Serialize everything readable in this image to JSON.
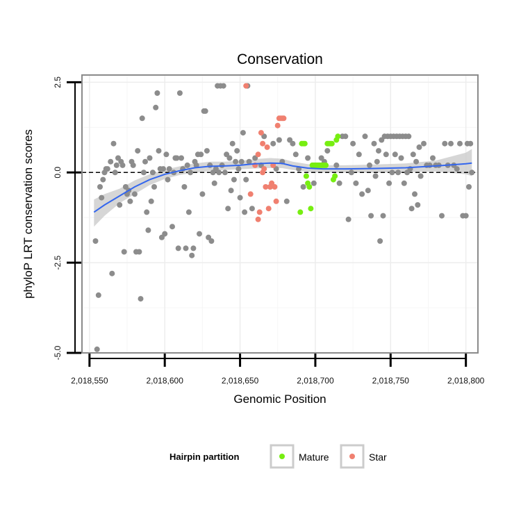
{
  "chart_data": {
    "type": "scatter",
    "title": "Conservation",
    "xlabel": "Genomic Position",
    "ylabel": "phyloP LRT conservation scores",
    "xlim": [
      2018545,
      2018808
    ],
    "ylim": [
      -5.0,
      2.7
    ],
    "x_ticks": [
      2018550,
      2018600,
      2018650,
      2018700,
      2018750,
      2018800
    ],
    "x_tick_labels": [
      "2,018,550",
      "2,018,600",
      "2,018,650",
      "2,018,700",
      "2,018,750",
      "2,018,800"
    ],
    "y_ticks": [
      -5.0,
      -2.5,
      0.0,
      2.5
    ],
    "y_tick_labels": [
      "-5.0",
      "-2.5",
      "0.0",
      "2.5"
    ],
    "grid": true,
    "reference_line": {
      "y": 0.0,
      "style": "dashed"
    },
    "legend": {
      "title": "Hairpin partition",
      "position": "bottom",
      "entries": [
        {
          "label": "Mature",
          "color": "#77ee11"
        },
        {
          "label": "Star",
          "color": "#f08070"
        }
      ]
    },
    "colors": {
      "other": "#8c8c8c",
      "Mature": "#77ee11",
      "Star": "#f08070",
      "smooth": "#3366ee",
      "ribbon": "#c8c8c8"
    },
    "series": [
      {
        "group": "other",
        "points": [
          [
            2018554,
            -1.9
          ],
          [
            2018555,
            -4.9
          ],
          [
            2018556,
            -3.4
          ],
          [
            2018557,
            -0.4
          ],
          [
            2018558,
            -0.7
          ],
          [
            2018559,
            -0.2
          ],
          [
            2018560,
            0.0
          ],
          [
            2018561,
            0.1
          ],
          [
            2018562,
            0.1
          ],
          [
            2018564,
            0.3
          ],
          [
            2018565,
            -2.8
          ],
          [
            2018566,
            0.8
          ],
          [
            2018567,
            0.0
          ],
          [
            2018568,
            0.2
          ],
          [
            2018569,
            0.4
          ],
          [
            2018570,
            -0.9
          ],
          [
            2018571,
            0.3
          ],
          [
            2018572,
            0.2
          ],
          [
            2018573,
            -2.2
          ],
          [
            2018574,
            -0.4
          ],
          [
            2018575,
            -0.6
          ],
          [
            2018576,
            -0.5
          ],
          [
            2018577,
            -0.8
          ],
          [
            2018578,
            0.3
          ],
          [
            2018579,
            0.2
          ],
          [
            2018580,
            -0.6
          ],
          [
            2018581,
            -2.2
          ],
          [
            2018582,
            0.6
          ],
          [
            2018583,
            -2.2
          ],
          [
            2018584,
            -3.5
          ],
          [
            2018585,
            1.5
          ],
          [
            2018586,
            0.0
          ],
          [
            2018587,
            0.3
          ],
          [
            2018588,
            -1.1
          ],
          [
            2018589,
            -1.6
          ],
          [
            2018590,
            0.4
          ],
          [
            2018591,
            -0.8
          ],
          [
            2018592,
            0.0
          ],
          [
            2018593,
            -0.4
          ],
          [
            2018594,
            1.8
          ],
          [
            2018595,
            2.2
          ],
          [
            2018596,
            0.6
          ],
          [
            2018597,
            0.1
          ],
          [
            2018598,
            -1.8
          ],
          [
            2018599,
            0.1
          ],
          [
            2018600,
            -1.7
          ],
          [
            2018601,
            0.5
          ],
          [
            2018602,
            -0.2
          ],
          [
            2018603,
            0.1
          ],
          [
            2018605,
            -1.5
          ],
          [
            2018606,
            0.0
          ],
          [
            2018607,
            0.4
          ],
          [
            2018608,
            0.4
          ],
          [
            2018609,
            -2.1
          ],
          [
            2018610,
            2.2
          ],
          [
            2018611,
            0.4
          ],
          [
            2018612,
            0.1
          ],
          [
            2018613,
            -0.4
          ],
          [
            2018614,
            -2.1
          ],
          [
            2018615,
            0.2
          ],
          [
            2018616,
            -1.1
          ],
          [
            2018617,
            0.0
          ],
          [
            2018618,
            -2.3
          ],
          [
            2018619,
            -2.1
          ],
          [
            2018620,
            0.3
          ],
          [
            2018621,
            0.2
          ],
          [
            2018622,
            0.5
          ],
          [
            2018623,
            -1.7
          ],
          [
            2018624,
            0.5
          ],
          [
            2018625,
            -0.6
          ],
          [
            2018626,
            1.7
          ],
          [
            2018627,
            1.7
          ],
          [
            2018628,
            0.6
          ],
          [
            2018629,
            -1.8
          ],
          [
            2018630,
            0.2
          ],
          [
            2018631,
            -1.9
          ],
          [
            2018632,
            0.0
          ],
          [
            2018633,
            -0.3
          ],
          [
            2018634,
            0.1
          ],
          [
            2018635,
            2.4
          ],
          [
            2018636,
            0.0
          ],
          [
            2018637,
            2.4
          ],
          [
            2018638,
            0.2
          ],
          [
            2018639,
            2.4
          ],
          [
            2018640,
            0.0
          ],
          [
            2018641,
            0.5
          ],
          [
            2018642,
            -1.0
          ],
          [
            2018643,
            0.4
          ],
          [
            2018644,
            -0.5
          ],
          [
            2018645,
            0.8
          ],
          [
            2018646,
            -0.2
          ],
          [
            2018647,
            0.3
          ],
          [
            2018648,
            0.6
          ],
          [
            2018649,
            0.1
          ],
          [
            2018650,
            -0.7
          ],
          [
            2018651,
            0.3
          ],
          [
            2018652,
            1.1
          ],
          [
            2018653,
            -1.1
          ],
          [
            2018654,
            -0.2
          ],
          [
            2018655,
            2.4
          ],
          [
            2018656,
            0.3
          ],
          [
            2018658,
            -1.0
          ],
          [
            2018660,
            0.4
          ],
          [
            2018664,
            0.2
          ],
          [
            2018666,
            1.0
          ],
          [
            2018670,
            -0.4
          ],
          [
            2018672,
            0.8
          ],
          [
            2018674,
            0.1
          ],
          [
            2018676,
            0.9
          ],
          [
            2018678,
            0.3
          ],
          [
            2018681,
            -0.8
          ],
          [
            2018683,
            0.9
          ],
          [
            2018685,
            0.8
          ],
          [
            2018687,
            0.5
          ],
          [
            2018689,
            0.1
          ],
          [
            2018692,
            -0.4
          ],
          [
            2018695,
            0.4
          ],
          [
            2018699,
            -0.3
          ],
          [
            2018704,
            0.4
          ],
          [
            2018706,
            0.3
          ],
          [
            2018708,
            0.6
          ],
          [
            2018714,
            0.2
          ],
          [
            2018716,
            -0.3
          ],
          [
            2018718,
            1.0
          ],
          [
            2018720,
            1.0
          ],
          [
            2018722,
            -1.3
          ],
          [
            2018724,
            0.0
          ],
          [
            2018725,
            0.8
          ],
          [
            2018727,
            -0.3
          ],
          [
            2018729,
            0.5
          ],
          [
            2018731,
            -0.6
          ],
          [
            2018733,
            1.0
          ],
          [
            2018735,
            -0.5
          ],
          [
            2018736,
            0.2
          ],
          [
            2018737,
            -1.2
          ],
          [
            2018739,
            0.8
          ],
          [
            2018740,
            -0.1
          ],
          [
            2018741,
            0.3
          ],
          [
            2018742,
            0.6
          ],
          [
            2018743,
            -1.9
          ],
          [
            2018744,
            0.9
          ],
          [
            2018745,
            -1.2
          ],
          [
            2018746,
            1.0
          ],
          [
            2018747,
            0.5
          ],
          [
            2018748,
            1.0
          ],
          [
            2018749,
            -0.3
          ],
          [
            2018750,
            1.0
          ],
          [
            2018751,
            0.0
          ],
          [
            2018752,
            1.0
          ],
          [
            2018753,
            0.5
          ],
          [
            2018754,
            1.0
          ],
          [
            2018755,
            0.0
          ],
          [
            2018756,
            1.0
          ],
          [
            2018757,
            0.4
          ],
          [
            2018758,
            1.0
          ],
          [
            2018759,
            -0.3
          ],
          [
            2018760,
            1.0
          ],
          [
            2018761,
            0.0
          ],
          [
            2018762,
            1.0
          ],
          [
            2018763,
            0.1
          ],
          [
            2018764,
            -1.0
          ],
          [
            2018765,
            0.5
          ],
          [
            2018766,
            -0.6
          ],
          [
            2018767,
            0.3
          ],
          [
            2018768,
            -0.9
          ],
          [
            2018769,
            0.7
          ],
          [
            2018770,
            -0.1
          ],
          [
            2018772,
            0.8
          ],
          [
            2018774,
            0.2
          ],
          [
            2018776,
            0.2
          ],
          [
            2018778,
            0.4
          ],
          [
            2018780,
            0.2
          ],
          [
            2018782,
            0.2
          ],
          [
            2018784,
            -1.2
          ],
          [
            2018786,
            0.8
          ],
          [
            2018788,
            0.2
          ],
          [
            2018790,
            0.8
          ],
          [
            2018792,
            0.2
          ],
          [
            2018794,
            0.1
          ],
          [
            2018796,
            0.8
          ],
          [
            2018798,
            -1.2
          ],
          [
            2018800,
            -1.2
          ],
          [
            2018801,
            0.8
          ],
          [
            2018802,
            -0.4
          ],
          [
            2018803,
            0.8
          ],
          [
            2018804,
            0.0
          ]
        ]
      },
      {
        "group": "Star",
        "points": [
          [
            2018654,
            2.4
          ],
          [
            2018662,
            -1.3
          ],
          [
            2018662,
            0.5
          ],
          [
            2018663,
            -1.1
          ],
          [
            2018664,
            1.1
          ],
          [
            2018665,
            0.8
          ],
          [
            2018666,
            0.1
          ],
          [
            2018667,
            -0.4
          ],
          [
            2018668,
            0.7
          ],
          [
            2018669,
            -1.0
          ],
          [
            2018670,
            -0.4
          ],
          [
            2018671,
            -0.3
          ],
          [
            2018672,
            0.2
          ],
          [
            2018673,
            -0.4
          ],
          [
            2018674,
            -0.8
          ],
          [
            2018675,
            1.3
          ],
          [
            2018676,
            1.5
          ],
          [
            2018677,
            1.5
          ],
          [
            2018678,
            1.5
          ],
          [
            2018679,
            1.5
          ],
          [
            2018660,
            0.2
          ],
          [
            2018657,
            -0.6
          ],
          [
            2018665,
            0.0
          ]
        ]
      },
      {
        "group": "Mature",
        "points": [
          [
            2018690,
            -1.1
          ],
          [
            2018691,
            0.8
          ],
          [
            2018692,
            0.8
          ],
          [
            2018693,
            0.8
          ],
          [
            2018694,
            -0.1
          ],
          [
            2018695,
            -0.3
          ],
          [
            2018696,
            -0.4
          ],
          [
            2018697,
            -1.0
          ],
          [
            2018698,
            0.2
          ],
          [
            2018699,
            0.2
          ],
          [
            2018700,
            0.2
          ],
          [
            2018701,
            0.2
          ],
          [
            2018702,
            0.2
          ],
          [
            2018703,
            0.2
          ],
          [
            2018704,
            0.2
          ],
          [
            2018705,
            0.2
          ],
          [
            2018706,
            0.2
          ],
          [
            2018707,
            0.2
          ],
          [
            2018708,
            0.8
          ],
          [
            2018709,
            0.8
          ],
          [
            2018710,
            0.8
          ],
          [
            2018711,
            0.8
          ],
          [
            2018712,
            -0.2
          ],
          [
            2018713,
            -0.1
          ],
          [
            2018714,
            0.9
          ],
          [
            2018715,
            1.0
          ]
        ]
      }
    ],
    "smooth": {
      "x": [
        2018553,
        2018560,
        2018570,
        2018580,
        2018590,
        2018600,
        2018610,
        2018620,
        2018630,
        2018640,
        2018650,
        2018660,
        2018670,
        2018678,
        2018685,
        2018695,
        2018705,
        2018720,
        2018740,
        2018760,
        2018780,
        2018800,
        2018804
      ],
      "y": [
        -1.1,
        -0.9,
        -0.65,
        -0.4,
        -0.2,
        -0.05,
        0.05,
        0.13,
        0.17,
        0.18,
        0.2,
        0.24,
        0.26,
        0.25,
        0.18,
        0.12,
        0.1,
        0.1,
        0.11,
        0.13,
        0.18,
        0.24,
        0.26
      ],
      "lower": [
        -1.5,
        -1.2,
        -0.85,
        -0.6,
        -0.35,
        -0.18,
        -0.07,
        0.0,
        0.04,
        0.07,
        0.09,
        0.11,
        0.12,
        0.12,
        0.07,
        0.02,
        0.0,
        0.0,
        0.0,
        0.01,
        0.03,
        -0.05,
        -0.1
      ],
      "upper": [
        -0.75,
        -0.6,
        -0.45,
        -0.22,
        -0.05,
        0.08,
        0.17,
        0.25,
        0.3,
        0.3,
        0.32,
        0.37,
        0.4,
        0.38,
        0.3,
        0.23,
        0.2,
        0.2,
        0.22,
        0.25,
        0.33,
        0.55,
        0.65
      ]
    }
  }
}
